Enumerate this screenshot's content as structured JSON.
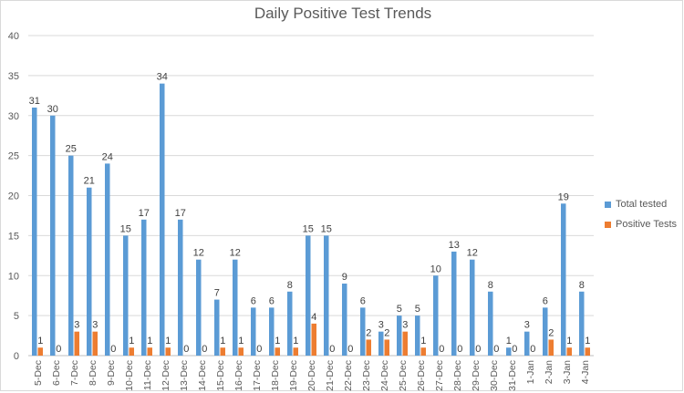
{
  "chart_data": {
    "type": "bar",
    "title": "Daily Positive Test Trends",
    "xlabel": "",
    "ylabel": "",
    "ylim": [
      0,
      40
    ],
    "yticks": [
      0,
      5,
      10,
      15,
      20,
      25,
      30,
      35,
      40
    ],
    "grid": true,
    "legend_position": "right",
    "categories": [
      "5-Dec",
      "6-Dec",
      "7-Dec",
      "8-Dec",
      "9-Dec",
      "10-Dec",
      "11-Dec",
      "12-Dec",
      "13-Dec",
      "14-Dec",
      "15-Dec",
      "16-Dec",
      "17-Dec",
      "18-Dec",
      "19-Dec",
      "20-Dec",
      "21-Dec",
      "22-Dec",
      "23-Dec",
      "24-Dec",
      "25-Dec",
      "26-Dec",
      "27-Dec",
      "28-Dec",
      "29-Dec",
      "30-Dec",
      "31-Dec",
      "1-Jan",
      "2-Jan",
      "3-Jan",
      "4-Jan"
    ],
    "series": [
      {
        "name": "Total tested",
        "color": "#5b9bd5",
        "values": [
          31,
          30,
          25,
          21,
          24,
          15,
          17,
          34,
          17,
          12,
          7,
          12,
          6,
          6,
          8,
          15,
          15,
          9,
          6,
          3,
          5,
          5,
          10,
          13,
          12,
          8,
          1,
          3,
          6,
          19,
          8
        ]
      },
      {
        "name": "Positive Tests",
        "color": "#ed7d31",
        "values": [
          1,
          0,
          3,
          3,
          0,
          1,
          1,
          1,
          0,
          0,
          1,
          1,
          0,
          1,
          1,
          4,
          0,
          0,
          2,
          2,
          3,
          1,
          0,
          0,
          0,
          0,
          0,
          0,
          2,
          1,
          1
        ]
      }
    ]
  }
}
